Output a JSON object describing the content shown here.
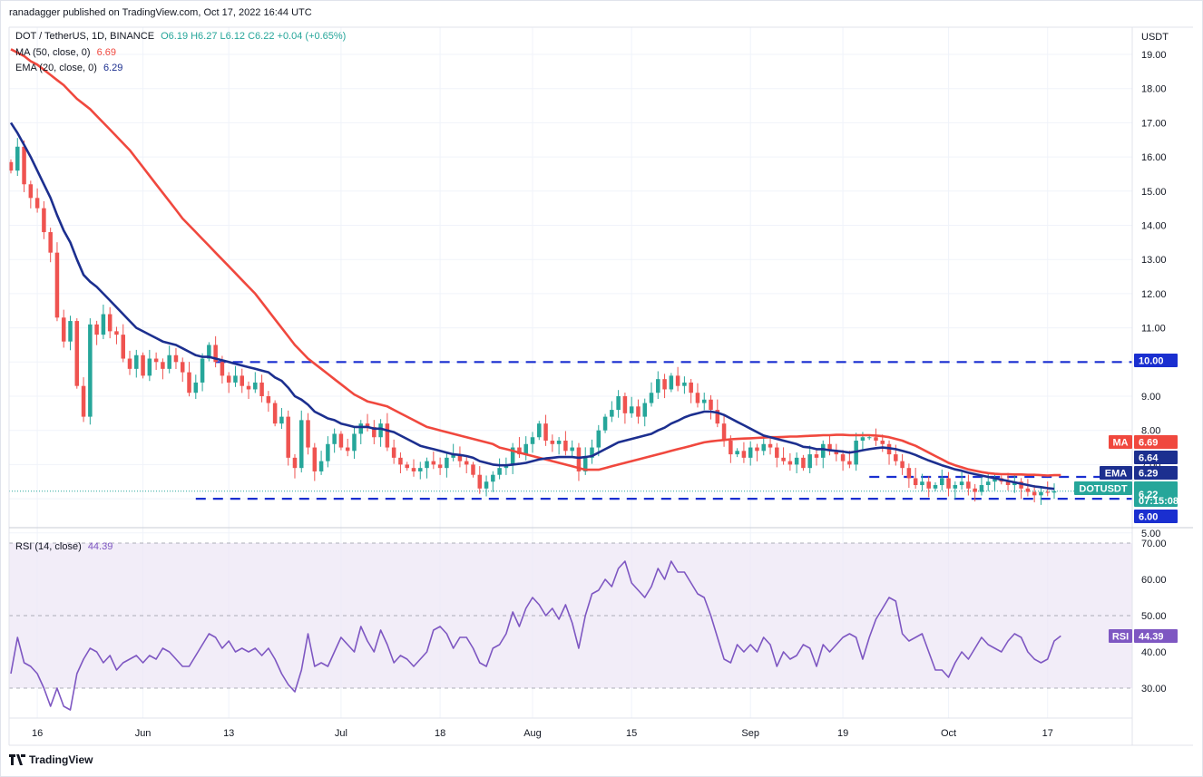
{
  "header": {
    "publisher": "ranadagger published on TradingView.com, Oct 17, 2022 16:44 UTC"
  },
  "legend": {
    "symbol": "DOT / TetherUS, 1D, BINANCE",
    "ohlc": "O6.19 H6.27 L6.12 C6.22 +0.04 (+0.65%)",
    "ma_label": "MA (50, close, 0)",
    "ma_value": "6.69",
    "ema_label": "EMA (20, close, 0)",
    "ema_value": "6.29",
    "rsi_label": "RSI (14, close)",
    "rsi_value": "44.39"
  },
  "footer": {
    "brand": "TradingView"
  },
  "colors": {
    "up": "#26a69a",
    "down": "#ef5350",
    "ma": "#f0483e",
    "ema": "#1c2f8f",
    "level": "#1a2fd0",
    "rsi": "#7e57c2",
    "rsi_band": "#ede7f6"
  },
  "chart_data": {
    "type": "candlestick",
    "price_axis": {
      "unit": "USDT",
      "ticks": [
        "19.00",
        "18.00",
        "17.00",
        "16.00",
        "15.00",
        "14.00",
        "13.00",
        "12.00",
        "11.00",
        "10.00",
        "9.00",
        "8.00",
        "7.00",
        "6.00",
        "5.00"
      ],
      "ylim": [
        5.0,
        19.3
      ]
    },
    "time_axis": {
      "ticks": [
        "16",
        "Jun",
        "13",
        "Jul",
        "18",
        "Aug",
        "15",
        "Sep",
        "19",
        "Oct",
        "17"
      ],
      "tick_days": [
        4,
        20,
        33,
        50,
        65,
        79,
        94,
        112,
        126,
        142,
        157
      ]
    },
    "levels": [
      {
        "name": "resistance",
        "value": 10.0,
        "label": "10.00",
        "from_day": 31
      },
      {
        "name": "support",
        "value": 6.0,
        "label": "6.00",
        "from_day": 28
      },
      {
        "name": "short-resistance",
        "value": 6.64,
        "label": "6.64",
        "from_day": 130
      }
    ],
    "badges": {
      "ma": {
        "label": "MA",
        "value": "6.69"
      },
      "ma_line_value": "6.64",
      "ema": {
        "label": "EMA",
        "value": "6.29"
      },
      "symbol": {
        "label": "DOTUSDT",
        "value": "6.22",
        "countdown": "07:15:08"
      },
      "rsi": {
        "label": "RSI",
        "value": "44.39"
      }
    },
    "closes": [
      15.6,
      16.3,
      15.2,
      14.8,
      14.5,
      13.8,
      13.2,
      11.3,
      10.6,
      11.2,
      9.3,
      8.4,
      11.1,
      10.8,
      11.4,
      10.9,
      10.8,
      10.1,
      9.8,
      10.2,
      9.6,
      10.1,
      10.0,
      9.8,
      10.2,
      10.0,
      9.7,
      9.1,
      9.4,
      10.1,
      10.5,
      10.0,
      9.6,
      9.4,
      9.6,
      9.3,
      9.2,
      9.4,
      9.0,
      8.8,
      8.2,
      8.4,
      7.2,
      6.9,
      8.3,
      7.5,
      6.8,
      7.1,
      7.6,
      7.9,
      7.5,
      7.4,
      7.9,
      8.2,
      8.1,
      7.8,
      8.2,
      7.5,
      7.2,
      7.0,
      6.9,
      6.8,
      6.9,
      7.1,
      7.0,
      6.9,
      7.2,
      7.3,
      7.1,
      7.0,
      6.7,
      6.3,
      6.5,
      6.7,
      6.9,
      7.0,
      7.5,
      7.3,
      7.6,
      7.8,
      8.2,
      7.7,
      7.6,
      7.7,
      7.4,
      7.5,
      6.8,
      7.2,
      7.5,
      8.0,
      8.4,
      8.6,
      9.0,
      8.5,
      8.7,
      8.4,
      8.8,
      9.1,
      9.5,
      9.2,
      9.6,
      9.3,
      9.4,
      9.1,
      8.8,
      8.9,
      8.6,
      8.2,
      7.7,
      7.3,
      7.4,
      7.2,
      7.5,
      7.4,
      7.6,
      7.5,
      7.2,
      7.1,
      7.0,
      7.2,
      6.9,
      7.3,
      7.2,
      7.6,
      7.4,
      7.3,
      7.1,
      7.0,
      7.7,
      7.8,
      7.8,
      7.7,
      7.6,
      7.3,
      7.1,
      6.9,
      6.6,
      6.4,
      6.5,
      6.3,
      6.4,
      6.6,
      6.3,
      6.4,
      6.5,
      6.3,
      6.2,
      6.4,
      6.5,
      6.6,
      6.5,
      6.4,
      6.5,
      6.3,
      6.2,
      6.1,
      6.2,
      6.18,
      6.22
    ],
    "ma50": [
      19.15,
      19.05,
      18.95,
      18.8,
      18.7,
      18.55,
      18.4,
      18.25,
      18.1,
      17.9,
      17.7,
      17.55,
      17.4,
      17.2,
      17.0,
      16.8,
      16.6,
      16.4,
      16.2,
      15.95,
      15.7,
      15.45,
      15.2,
      14.95,
      14.7,
      14.45,
      14.2,
      14.0,
      13.8,
      13.6,
      13.4,
      13.2,
      13.0,
      12.8,
      12.6,
      12.4,
      12.2,
      12.0,
      11.75,
      11.5,
      11.25,
      11.0,
      10.75,
      10.5,
      10.3,
      10.1,
      9.95,
      9.8,
      9.65,
      9.5,
      9.35,
      9.2,
      9.05,
      8.95,
      8.85,
      8.8,
      8.75,
      8.7,
      8.6,
      8.5,
      8.4,
      8.3,
      8.2,
      8.1,
      8.05,
      8.0,
      7.95,
      7.9,
      7.85,
      7.8,
      7.75,
      7.7,
      7.65,
      7.6,
      7.5,
      7.45,
      7.4,
      7.35,
      7.3,
      7.25,
      7.2,
      7.15,
      7.1,
      7.05,
      7.0,
      6.95,
      6.9,
      6.85,
      6.85,
      6.85,
      6.9,
      6.95,
      7.0,
      7.05,
      7.1,
      7.15,
      7.2,
      7.25,
      7.3,
      7.35,
      7.4,
      7.45,
      7.5,
      7.55,
      7.6,
      7.65,
      7.68,
      7.7,
      7.72,
      7.74,
      7.75,
      7.76,
      7.77,
      7.78,
      7.79,
      7.8,
      7.8,
      7.81,
      7.82,
      7.82,
      7.83,
      7.84,
      7.85,
      7.86,
      7.86,
      7.87,
      7.87,
      7.86,
      7.86,
      7.86,
      7.86,
      7.85,
      7.83,
      7.8,
      7.75,
      7.7,
      7.62,
      7.55,
      7.45,
      7.35,
      7.25,
      7.15,
      7.05,
      6.98,
      6.92,
      6.86,
      6.82,
      6.78,
      6.75,
      6.73,
      6.72,
      6.72,
      6.71,
      6.71,
      6.7,
      6.7,
      6.69,
      6.68,
      6.69,
      6.69
    ],
    "ema20": [
      17.0,
      16.7,
      16.35,
      16.0,
      15.6,
      15.2,
      14.8,
      14.3,
      13.85,
      13.5,
      13.0,
      12.55,
      12.35,
      12.2,
      12.0,
      11.8,
      11.6,
      11.4,
      11.2,
      11.0,
      10.9,
      10.8,
      10.7,
      10.6,
      10.55,
      10.5,
      10.4,
      10.3,
      10.2,
      10.15,
      10.15,
      10.1,
      10.05,
      10.0,
      9.95,
      9.9,
      9.85,
      9.8,
      9.75,
      9.7,
      9.55,
      9.45,
      9.25,
      9.0,
      8.9,
      8.75,
      8.55,
      8.45,
      8.35,
      8.3,
      8.2,
      8.15,
      8.1,
      8.1,
      8.1,
      8.05,
      8.05,
      8.0,
      7.95,
      7.85,
      7.75,
      7.65,
      7.55,
      7.5,
      7.45,
      7.4,
      7.35,
      7.3,
      7.28,
      7.25,
      7.2,
      7.1,
      7.05,
      7.0,
      6.98,
      6.98,
      7.0,
      7.02,
      7.05,
      7.1,
      7.15,
      7.18,
      7.2,
      7.22,
      7.22,
      7.22,
      7.2,
      7.22,
      7.25,
      7.35,
      7.45,
      7.55,
      7.65,
      7.7,
      7.75,
      7.8,
      7.85,
      7.9,
      8.0,
      8.08,
      8.2,
      8.28,
      8.38,
      8.45,
      8.5,
      8.55,
      8.55,
      8.52,
      8.45,
      8.35,
      8.25,
      8.15,
      8.05,
      7.95,
      7.85,
      7.8,
      7.75,
      7.7,
      7.65,
      7.6,
      7.52,
      7.5,
      7.45,
      7.45,
      7.42,
      7.4,
      7.38,
      7.35,
      7.38,
      7.42,
      7.45,
      7.48,
      7.5,
      7.48,
      7.45,
      7.4,
      7.35,
      7.28,
      7.2,
      7.12,
      7.05,
      6.98,
      6.92,
      6.86,
      6.82,
      6.76,
      6.72,
      6.68,
      6.64,
      6.6,
      6.56,
      6.52,
      6.48,
      6.44,
      6.4,
      6.36,
      6.34,
      6.31,
      6.29
    ],
    "rsi": {
      "ticks": [
        "70.00",
        "60.00",
        "50.00",
        "40.00",
        "30.00"
      ],
      "ylim": [
        23,
        72
      ],
      "band": [
        30,
        70
      ],
      "midline": 50,
      "values": [
        34,
        44,
        37,
        36,
        34,
        30,
        25,
        30,
        25,
        24,
        34,
        38,
        41,
        40,
        37,
        39,
        35,
        37,
        38,
        39,
        37,
        39,
        38,
        41,
        40,
        38,
        36,
        36,
        39,
        42,
        45,
        44,
        41,
        43,
        40,
        41,
        40,
        41,
        39,
        41,
        38,
        34,
        31,
        29,
        35,
        45,
        36,
        37,
        36,
        40,
        44,
        42,
        40,
        47,
        43,
        40,
        46,
        42,
        37,
        39,
        38,
        36,
        38,
        40,
        46,
        47,
        45,
        41,
        44,
        44,
        41,
        37,
        36,
        41,
        42,
        45,
        51,
        47,
        52,
        55,
        53,
        50,
        52,
        49,
        53,
        48,
        41,
        50,
        56,
        57,
        60,
        58,
        63,
        65,
        59,
        57,
        55,
        58,
        63,
        60,
        65,
        62,
        62,
        59,
        56,
        55,
        50,
        44,
        38,
        37,
        42,
        40,
        42,
        40,
        44,
        42,
        36,
        40,
        38,
        39,
        42,
        41,
        36,
        42,
        40,
        42,
        44,
        45,
        44,
        38,
        44,
        49,
        52,
        55,
        54,
        45,
        43,
        44,
        45,
        40,
        35,
        35,
        33,
        37,
        40,
        38,
        41,
        44,
        42,
        41,
        40,
        43,
        45,
        44,
        40,
        38,
        37,
        38,
        43,
        44.39
      ]
    }
  }
}
